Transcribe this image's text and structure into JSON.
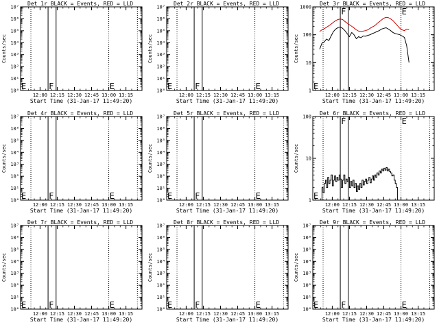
{
  "figure": {
    "x_time_axis": {
      "label": "Start Time (31-Jan-17 11:49:20)",
      "ticks": [
        "12:00",
        "12:15",
        "12:30",
        "12:45",
        "13:00",
        "13:15"
      ],
      "ticks_minutes": [
        11,
        26,
        41,
        56,
        71,
        86
      ],
      "range_minutes": [
        -6,
        100
      ]
    },
    "ylabel": "Counts/sec",
    "markers": {
      "f_label": "F",
      "e_label": "E"
    }
  },
  "chart_data": [
    {
      "type": "line",
      "title": "Det 1r BLACK = Events, RED = LLD",
      "yscale": "log",
      "ylim": [
        1,
        10000000
      ],
      "yticks": [
        "10⁰",
        "10¹",
        "10²",
        "10³",
        "10⁴",
        "10⁵",
        "10⁶",
        "10⁷"
      ],
      "dotted_lines_minutes": [
        3,
        71,
        96
      ],
      "solid_lines_minutes": [
        18,
        25
      ],
      "series_events": [],
      "series_lld": []
    },
    {
      "type": "line",
      "title": "Det 2r BLACK = Events, RED = LLD",
      "yscale": "log",
      "ylim": [
        1,
        10000000
      ],
      "yticks": [
        "10⁰",
        "10¹",
        "10²",
        "10³",
        "10⁴",
        "10⁵",
        "10⁶",
        "10⁷"
      ],
      "dotted_lines_minutes": [
        3,
        71,
        96
      ],
      "solid_lines_minutes": [
        18,
        25
      ],
      "series_events": [],
      "series_lld": []
    },
    {
      "type": "line",
      "title": "Det 3r BLACK = Events, RED = LLD",
      "yscale": "log",
      "ylim": [
        1,
        1000
      ],
      "yticks": [
        "1",
        "10",
        "100",
        "1000"
      ],
      "dotted_lines_minutes": [
        3,
        71,
        96
      ],
      "solid_lines_minutes": [
        18,
        25
      ],
      "series_events": [
        [
          0,
          30
        ],
        [
          2,
          50
        ],
        [
          4,
          55
        ],
        [
          6,
          70
        ],
        [
          8,
          62
        ],
        [
          10,
          90
        ],
        [
          12,
          130
        ],
        [
          14,
          160
        ],
        [
          16,
          180
        ],
        [
          18,
          190
        ],
        [
          20,
          170
        ],
        [
          22,
          140
        ],
        [
          24,
          110
        ],
        [
          26,
          85
        ],
        [
          28,
          120
        ],
        [
          30,
          100
        ],
        [
          32,
          72
        ],
        [
          34,
          85
        ],
        [
          36,
          78
        ],
        [
          38,
          90
        ],
        [
          40,
          88
        ],
        [
          42,
          95
        ],
        [
          44,
          100
        ],
        [
          46,
          110
        ],
        [
          48,
          118
        ],
        [
          50,
          130
        ],
        [
          52,
          140
        ],
        [
          54,
          160
        ],
        [
          56,
          170
        ],
        [
          58,
          178
        ],
        [
          60,
          160
        ],
        [
          62,
          140
        ],
        [
          64,
          120
        ],
        [
          66,
          110
        ],
        [
          68,
          105
        ],
        [
          70,
          100
        ],
        [
          72,
          90
        ],
        [
          74,
          80
        ],
        [
          76,
          40
        ],
        [
          78,
          10
        ]
      ],
      "series_lld": [
        [
          0,
          130
        ],
        [
          2,
          150
        ],
        [
          4,
          165
        ],
        [
          6,
          185
        ],
        [
          8,
          210
        ],
        [
          10,
          240
        ],
        [
          12,
          280
        ],
        [
          14,
          320
        ],
        [
          16,
          350
        ],
        [
          18,
          370
        ],
        [
          20,
          350
        ],
        [
          22,
          300
        ],
        [
          24,
          260
        ],
        [
          26,
          230
        ],
        [
          28,
          200
        ],
        [
          30,
          175
        ],
        [
          32,
          150
        ],
        [
          34,
          135
        ],
        [
          36,
          130
        ],
        [
          38,
          135
        ],
        [
          40,
          140
        ],
        [
          42,
          150
        ],
        [
          44,
          170
        ],
        [
          46,
          190
        ],
        [
          48,
          210
        ],
        [
          50,
          250
        ],
        [
          52,
          290
        ],
        [
          54,
          340
        ],
        [
          56,
          390
        ],
        [
          58,
          420
        ],
        [
          60,
          410
        ],
        [
          62,
          370
        ],
        [
          64,
          320
        ],
        [
          66,
          260
        ],
        [
          68,
          210
        ],
        [
          70,
          170
        ],
        [
          72,
          150
        ],
        [
          74,
          140
        ],
        [
          76,
          160
        ],
        [
          78,
          150
        ]
      ]
    },
    {
      "type": "line",
      "title": "Det 4r BLACK = Events, RED = LLD",
      "yscale": "log",
      "ylim": [
        1,
        10000000
      ],
      "yticks": [
        "10⁰",
        "10¹",
        "10²",
        "10³",
        "10⁴",
        "10⁵",
        "10⁶",
        "10⁷"
      ],
      "dotted_lines_minutes": [
        3,
        71,
        96
      ],
      "solid_lines_minutes": [
        18,
        25
      ],
      "series_events": [],
      "series_lld": []
    },
    {
      "type": "line",
      "title": "Det 5r BLACK = Events, RED = LLD",
      "yscale": "log",
      "ylim": [
        1,
        10000000
      ],
      "yticks": [
        "10⁰",
        "10¹",
        "10²",
        "10³",
        "10⁴",
        "10⁵",
        "10⁶",
        "10⁷"
      ],
      "dotted_lines_minutes": [
        3,
        71,
        96
      ],
      "solid_lines_minutes": [
        18,
        25
      ],
      "series_events": [],
      "series_lld": []
    },
    {
      "type": "line",
      "title": "Det 6r BLACK = Events, RED = LLD",
      "yscale": "log",
      "ylim": [
        1,
        100
      ],
      "yticks": [
        "1",
        "10",
        "100"
      ],
      "dotted_lines_minutes": [
        3,
        71,
        96
      ],
      "solid_lines_minutes": [
        18,
        25
      ],
      "series_events": [
        [
          0,
          1
        ],
        [
          2,
          2
        ],
        [
          3,
          1.5
        ],
        [
          4,
          2.5
        ],
        [
          5,
          3
        ],
        [
          6,
          2
        ],
        [
          7,
          3.5
        ],
        [
          8,
          2.5
        ],
        [
          9,
          3
        ],
        [
          10,
          4
        ],
        [
          11,
          2.2
        ],
        [
          12,
          3
        ],
        [
          13,
          3.8
        ],
        [
          14,
          2.8
        ],
        [
          15,
          3.5
        ],
        [
          16,
          3
        ],
        [
          17,
          4
        ],
        [
          18,
          3.2
        ],
        [
          19,
          2
        ],
        [
          20,
          3
        ],
        [
          21,
          4
        ],
        [
          22,
          2.5
        ],
        [
          23,
          3.2
        ],
        [
          24,
          2.8
        ],
        [
          25,
          3.5
        ],
        [
          26,
          2
        ],
        [
          27,
          2.8
        ],
        [
          28,
          2.2
        ],
        [
          29,
          3
        ],
        [
          30,
          2
        ],
        [
          31,
          2.5
        ],
        [
          32,
          1.6
        ],
        [
          33,
          2.2
        ],
        [
          34,
          1.8
        ],
        [
          35,
          2.5
        ],
        [
          36,
          2
        ],
        [
          37,
          3
        ],
        [
          38,
          2.3
        ],
        [
          39,
          2.8
        ],
        [
          40,
          3.2
        ],
        [
          41,
          2.5
        ],
        [
          42,
          3
        ],
        [
          43,
          3.5
        ],
        [
          44,
          2.6
        ],
        [
          45,
          3.2
        ],
        [
          46,
          3.8
        ],
        [
          47,
          3
        ],
        [
          48,
          4
        ],
        [
          49,
          3.5
        ],
        [
          50,
          4.5
        ],
        [
          51,
          4
        ],
        [
          52,
          5
        ],
        [
          53,
          4.5
        ],
        [
          54,
          5.5
        ],
        [
          55,
          5
        ],
        [
          56,
          5.8
        ],
        [
          57,
          5.2
        ],
        [
          58,
          6
        ],
        [
          59,
          5
        ],
        [
          60,
          5.5
        ],
        [
          61,
          4.8
        ],
        [
          62,
          4.5
        ],
        [
          63,
          3.8
        ],
        [
          64,
          4
        ],
        [
          65,
          3
        ],
        [
          66,
          2.5
        ],
        [
          67,
          2
        ],
        [
          68,
          1
        ]
      ],
      "series_lld": []
    },
    {
      "type": "line",
      "title": "Det 7r BLACK = Events, RED = LLD",
      "yscale": "log",
      "ylim": [
        1,
        10000000
      ],
      "yticks": [
        "10⁰",
        "10¹",
        "10²",
        "10³",
        "10⁴",
        "10⁵",
        "10⁶",
        "10⁷"
      ],
      "dotted_lines_minutes": [
        3,
        71,
        96
      ],
      "solid_lines_minutes": [
        18,
        25
      ],
      "series_events": [],
      "series_lld": []
    },
    {
      "type": "line",
      "title": "Det 8r BLACK = Events, RED = LLD",
      "yscale": "log",
      "ylim": [
        1,
        10000000
      ],
      "yticks": [
        "10⁰",
        "10¹",
        "10²",
        "10³",
        "10⁴",
        "10⁵",
        "10⁶",
        "10⁷"
      ],
      "dotted_lines_minutes": [
        3,
        71,
        96
      ],
      "solid_lines_minutes": [
        18,
        25
      ],
      "series_events": [],
      "series_lld": []
    },
    {
      "type": "line",
      "title": "Det 9r BLACK = Events, RED = LLD",
      "yscale": "log",
      "ylim": [
        1,
        10000000
      ],
      "yticks": [
        "10⁰",
        "10¹",
        "10²",
        "10³",
        "10⁴",
        "10⁵",
        "10⁶",
        "10⁷"
      ],
      "dotted_lines_minutes": [
        3,
        71,
        96
      ],
      "solid_lines_minutes": [
        18,
        25
      ],
      "series_events": [],
      "series_lld": []
    }
  ],
  "colors": {
    "events": "#000000",
    "lld": "#cc0000",
    "axis": "#000000",
    "background": "#ffffff"
  }
}
